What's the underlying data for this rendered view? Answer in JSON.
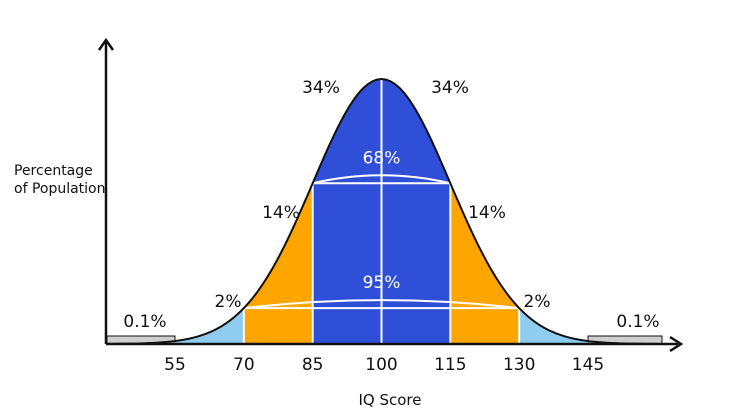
{
  "chart_data": {
    "type": "area",
    "xlabel": "IQ Score",
    "ylabel_lines": [
      "Percentage",
      "of Population"
    ],
    "x_ticks": [
      55,
      70,
      85,
      100,
      115,
      130,
      145
    ],
    "x_tick_labels": [
      "55",
      "70",
      "85",
      "100",
      "115",
      "130",
      "145"
    ],
    "distribution": {
      "mean": 100,
      "sd": 15
    },
    "bands": [
      {
        "from": 55,
        "to": 70,
        "label": "2%",
        "color": "#8fcdf0"
      },
      {
        "from": 70,
        "to": 85,
        "label": "14%",
        "color": "#ffa500"
      },
      {
        "from": 85,
        "to": 100,
        "label": "34%",
        "color": "#2f4fd9"
      },
      {
        "from": 100,
        "to": 115,
        "label": "34%",
        "color": "#2f4fd9"
      },
      {
        "from": 115,
        "to": 130,
        "label": "14%",
        "color": "#ffa500"
      },
      {
        "from": 130,
        "to": 145,
        "label": "2%",
        "color": "#8fcdf0"
      }
    ],
    "tail_labels": [
      "0.1%",
      "0.1%"
    ],
    "tail_color": "#cfcfcf",
    "ranges": [
      {
        "from": 85,
        "to": 115,
        "label": "68%"
      },
      {
        "from": 70,
        "to": 130,
        "label": "95%"
      }
    ],
    "line_color": "#111111"
  }
}
